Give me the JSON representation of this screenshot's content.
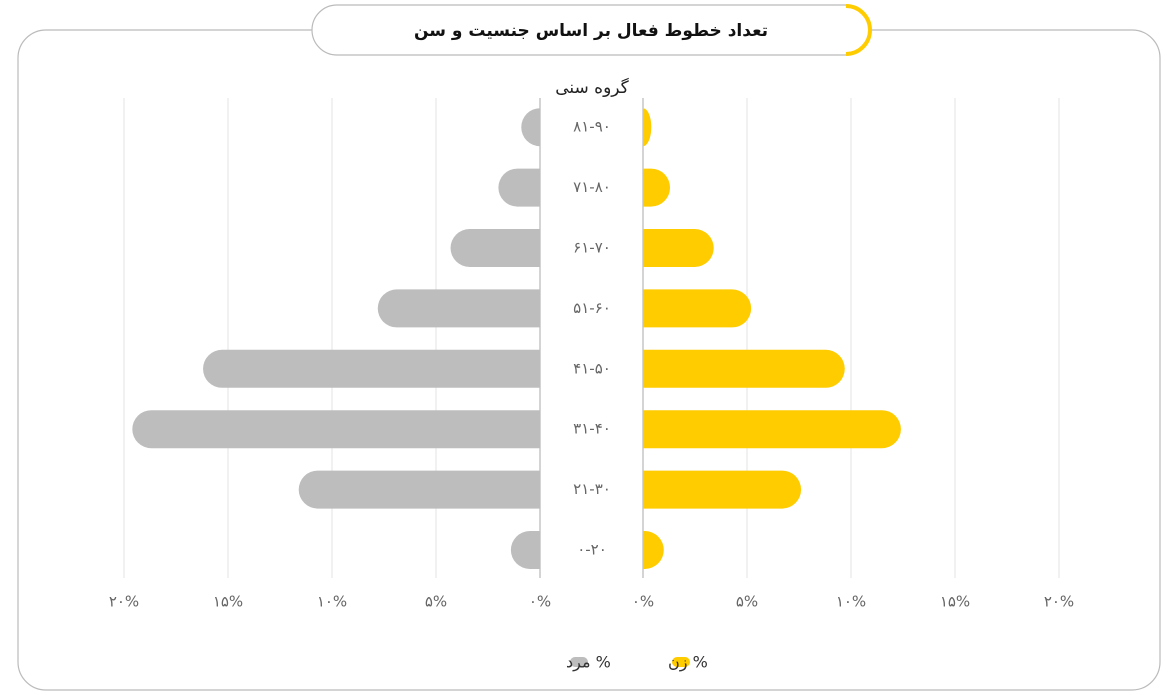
{
  "chart_data": {
    "type": "pyramid",
    "title": "تعداد خطوط فعال بر اساس جنسیت و سن",
    "axis_title": "گروه سنی",
    "categories": [
      "۸۱-۹۰",
      "۷۱-۸۰",
      "۶۱-۷۰",
      "۵۱-۶۰",
      "۴۱-۵۰",
      "۳۱-۴۰",
      "۲۱-۳۰",
      "۰-۲۰"
    ],
    "series": [
      {
        "name": "% مرد",
        "color": "#bdbdbd",
        "side": "left",
        "values": [
          0.9,
          2.0,
          4.3,
          7.8,
          16.2,
          19.6,
          11.6,
          1.4
        ]
      },
      {
        "name": "% زن",
        "color": "#ffcc00",
        "side": "right",
        "values": [
          0.4,
          1.3,
          3.4,
          5.2,
          9.7,
          12.4,
          7.6,
          1.0
        ]
      }
    ],
    "xlim": [
      0,
      20
    ],
    "xticks": [
      {
        "value": 0,
        "label": "۰%"
      },
      {
        "value": 5,
        "label": "۵%"
      },
      {
        "value": 10,
        "label": "۱۰%"
      },
      {
        "value": 15,
        "label": "۱۵%"
      },
      {
        "value": 20,
        "label": "۲۰%"
      }
    ],
    "grid": true
  }
}
